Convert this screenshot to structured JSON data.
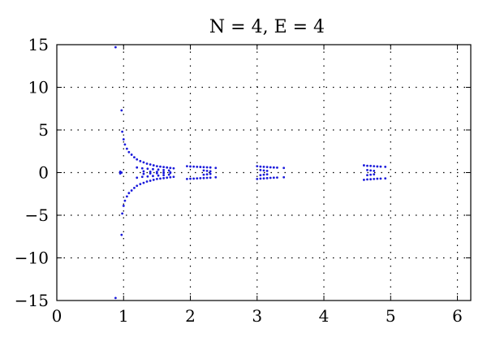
{
  "chart_data": {
    "type": "scatter",
    "title": "N = 4, E = 4",
    "xlabel": "",
    "ylabel": "",
    "xlim": [
      0,
      6.2
    ],
    "ylim": [
      -15,
      15
    ],
    "xticks": [
      0,
      1,
      2,
      3,
      4,
      5,
      6
    ],
    "yticks": [
      15,
      10,
      5,
      0,
      -5,
      -10,
      -15
    ],
    "xtick_labels": [
      "0",
      "1",
      "2",
      "3",
      "4",
      "5",
      "6"
    ],
    "ytick_labels": [
      "15",
      "10",
      "5",
      "0",
      "−5",
      "−10",
      "−15"
    ],
    "grid": true,
    "grid_style": "dotted",
    "marker_color": "#1a1adb",
    "axis_color": "#000000",
    "series": [
      {
        "points": [
          [
            0.88,
            14.7
          ],
          [
            0.88,
            -14.7
          ],
          [
            0.97,
            7.3
          ],
          [
            0.97,
            -7.3
          ],
          [
            0.98,
            4.8
          ],
          [
            0.98,
            -4.8
          ],
          [
            0.95,
            0.1
          ],
          [
            0.95,
            -0.1
          ],
          [
            0.97,
            0.0
          ],
          [
            1.0,
            3.9
          ],
          [
            1.02,
            3.3
          ],
          [
            1.05,
            2.8
          ],
          [
            1.08,
            2.4
          ],
          [
            1.12,
            2.1
          ],
          [
            1.16,
            1.8
          ],
          [
            1.2,
            1.55
          ],
          [
            1.25,
            1.35
          ],
          [
            1.3,
            1.2
          ],
          [
            1.35,
            1.05
          ],
          [
            1.4,
            0.95
          ],
          [
            1.45,
            0.85
          ],
          [
            1.5,
            0.75
          ],
          [
            1.55,
            0.7
          ],
          [
            1.6,
            0.65
          ],
          [
            1.65,
            0.6
          ],
          [
            1.7,
            0.55
          ],
          [
            1.75,
            0.5
          ],
          [
            1.0,
            -3.9
          ],
          [
            1.02,
            -3.3
          ],
          [
            1.05,
            -2.8
          ],
          [
            1.08,
            -2.4
          ],
          [
            1.12,
            -2.1
          ],
          [
            1.16,
            -1.8
          ],
          [
            1.2,
            -1.55
          ],
          [
            1.25,
            -1.35
          ],
          [
            1.3,
            -1.2
          ],
          [
            1.35,
            -1.05
          ],
          [
            1.4,
            -0.95
          ],
          [
            1.45,
            -0.85
          ],
          [
            1.5,
            -0.75
          ],
          [
            1.55,
            -0.7
          ],
          [
            1.6,
            -0.65
          ],
          [
            1.65,
            -0.6
          ],
          [
            1.7,
            -0.55
          ],
          [
            1.75,
            -0.5
          ],
          [
            1.2,
            0.6
          ],
          [
            1.28,
            0.5
          ],
          [
            1.36,
            0.45
          ],
          [
            1.44,
            0.4
          ],
          [
            1.52,
            0.35
          ],
          [
            1.6,
            0.3
          ],
          [
            1.68,
            0.25
          ],
          [
            1.2,
            -0.6
          ],
          [
            1.28,
            -0.5
          ],
          [
            1.36,
            -0.45
          ],
          [
            1.44,
            -0.4
          ],
          [
            1.52,
            -0.35
          ],
          [
            1.6,
            -0.3
          ],
          [
            1.68,
            -0.25
          ],
          [
            1.3,
            0.15
          ],
          [
            1.4,
            0.1
          ],
          [
            1.5,
            0.08
          ],
          [
            1.6,
            0.05
          ],
          [
            1.7,
            0.03
          ],
          [
            1.3,
            -0.15
          ],
          [
            1.4,
            -0.1
          ],
          [
            1.5,
            -0.08
          ],
          [
            1.6,
            -0.05
          ],
          [
            1.7,
            -0.03
          ],
          [
            1.95,
            0.75
          ],
          [
            2.0,
            0.72
          ],
          [
            2.05,
            0.7
          ],
          [
            2.1,
            0.68
          ],
          [
            2.15,
            0.66
          ],
          [
            2.2,
            0.64
          ],
          [
            2.25,
            0.62
          ],
          [
            2.3,
            0.6
          ],
          [
            2.38,
            0.55
          ],
          [
            1.95,
            -0.75
          ],
          [
            2.0,
            -0.72
          ],
          [
            2.05,
            -0.7
          ],
          [
            2.1,
            -0.68
          ],
          [
            2.15,
            -0.66
          ],
          [
            2.2,
            -0.64
          ],
          [
            2.25,
            -0.62
          ],
          [
            2.3,
            -0.6
          ],
          [
            2.38,
            -0.55
          ],
          [
            2.2,
            0.25
          ],
          [
            2.25,
            0.2
          ],
          [
            2.3,
            0.15
          ],
          [
            2.2,
            -0.25
          ],
          [
            2.25,
            -0.2
          ],
          [
            2.3,
            -0.15
          ],
          [
            3.0,
            0.75
          ],
          [
            3.05,
            0.7
          ],
          [
            3.1,
            0.68
          ],
          [
            3.15,
            0.65
          ],
          [
            3.2,
            0.62
          ],
          [
            3.25,
            0.6
          ],
          [
            3.3,
            0.58
          ],
          [
            3.4,
            0.55
          ],
          [
            3.0,
            -0.75
          ],
          [
            3.05,
            -0.7
          ],
          [
            3.1,
            -0.68
          ],
          [
            3.15,
            -0.65
          ],
          [
            3.2,
            -0.62
          ],
          [
            3.25,
            -0.6
          ],
          [
            3.3,
            -0.58
          ],
          [
            3.4,
            -0.55
          ],
          [
            3.05,
            0.3
          ],
          [
            3.1,
            0.25
          ],
          [
            3.15,
            0.2
          ],
          [
            3.05,
            -0.3
          ],
          [
            3.1,
            -0.25
          ],
          [
            3.15,
            -0.2
          ],
          [
            4.6,
            0.85
          ],
          [
            4.65,
            0.8
          ],
          [
            4.7,
            0.78
          ],
          [
            4.75,
            0.75
          ],
          [
            4.8,
            0.72
          ],
          [
            4.85,
            0.7
          ],
          [
            4.92,
            0.68
          ],
          [
            4.6,
            -0.85
          ],
          [
            4.65,
            -0.8
          ],
          [
            4.7,
            -0.78
          ],
          [
            4.75,
            -0.75
          ],
          [
            4.8,
            -0.72
          ],
          [
            4.85,
            -0.7
          ],
          [
            4.92,
            -0.68
          ],
          [
            4.65,
            0.3
          ],
          [
            4.7,
            0.25
          ],
          [
            4.75,
            0.2
          ],
          [
            4.65,
            -0.3
          ],
          [
            4.7,
            -0.25
          ],
          [
            4.75,
            -0.2
          ]
        ]
      }
    ]
  }
}
